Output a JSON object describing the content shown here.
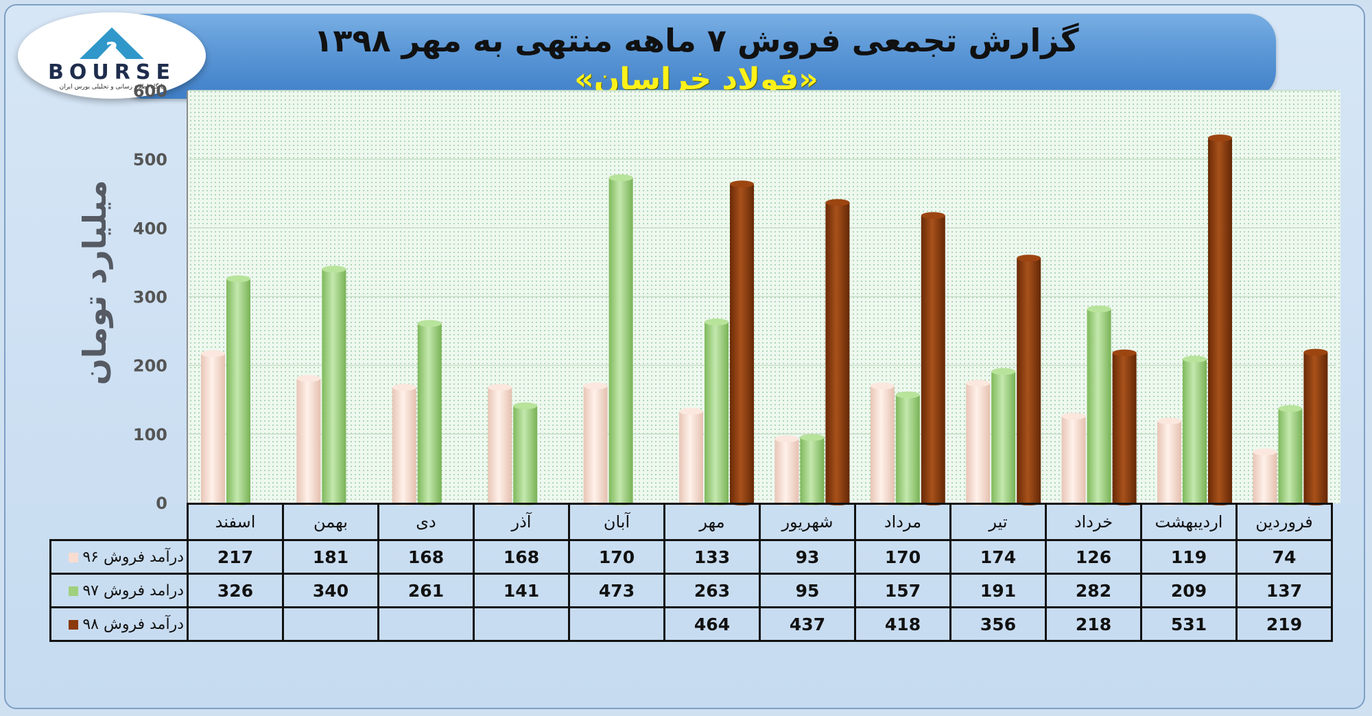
{
  "title": {
    "main": "گزارش تجمعی فروش ۷ ماهه منتهی به مهر ۱۳۹۸",
    "sub": "«فولاد خراسان»"
  },
  "logo": {
    "name": "BOURSE",
    "tagline": "پایگاه اطلاع رسانی و تحلیلی بورس ایران"
  },
  "colors": {
    "series96": "#f9dcd0",
    "series97": "#9fd07e",
    "series98": "#8b3a0c",
    "plot_background": "#ecf7ee",
    "banner": "#5b97d6"
  },
  "chart_data": {
    "type": "bar",
    "title": "گزارش تجمعی فروش ۷ ماهه منتهی به مهر ۱۳۹۸",
    "subtitle": "«فولاد خراسان»",
    "ylabel": "میلیارد تومان",
    "xlabel": "",
    "ylim": [
      0,
      600
    ],
    "yticks": [
      0,
      100,
      200,
      300,
      400,
      500,
      600
    ],
    "grid": true,
    "categories": [
      "فروردین",
      "اردیبهشت",
      "خرداد",
      "تیر",
      "مرداد",
      "شهریور",
      "مهر",
      "آبان",
      "آذر",
      "دی",
      "بهمن",
      "اسفند"
    ],
    "series": [
      {
        "name": "درآمد فروش ۹۶",
        "values": [
          74,
          119,
          126,
          174,
          170,
          93,
          133,
          170,
          168,
          168,
          181,
          217
        ]
      },
      {
        "name": "درامد فروش ۹۷",
        "values": [
          137,
          209,
          282,
          191,
          157,
          95,
          263,
          473,
          141,
          261,
          340,
          326
        ]
      },
      {
        "name": "درآمد فروش ۹۸",
        "values": [
          219,
          531,
          218,
          356,
          418,
          437,
          464,
          null,
          null,
          null,
          null,
          null
        ]
      }
    ]
  }
}
